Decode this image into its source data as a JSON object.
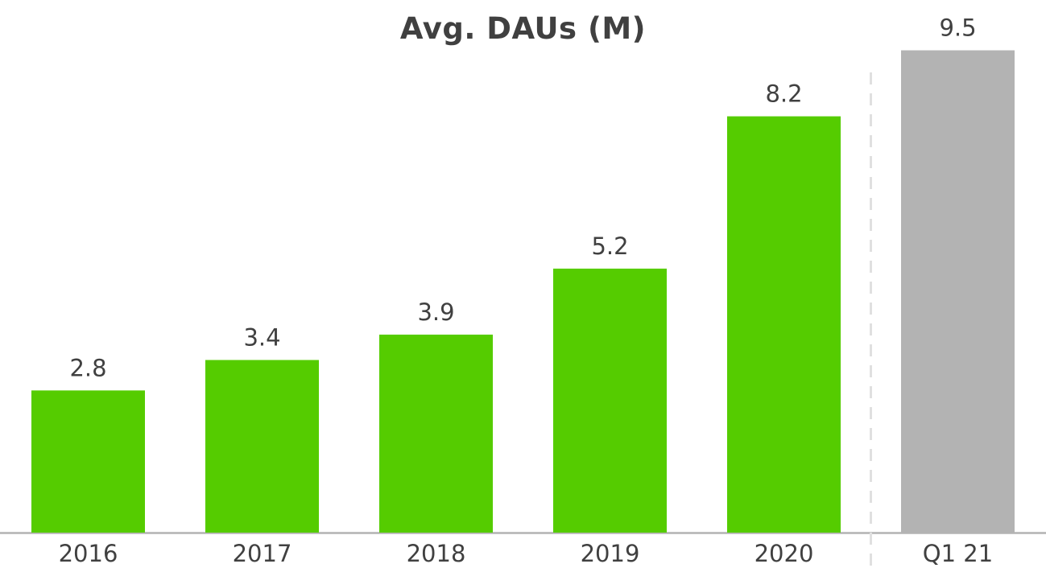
{
  "chart_data": {
    "type": "bar",
    "title": "Avg. DAUs (M)",
    "categories": [
      "2016",
      "2017",
      "2018",
      "2019",
      "2020",
      "Q1 21"
    ],
    "values": [
      2.8,
      3.4,
      3.9,
      5.2,
      8.2,
      9.5
    ],
    "value_labels": [
      "2.8",
      "3.4",
      "3.9",
      "5.2",
      "8.2",
      "9.5"
    ],
    "ylim": [
      0,
      10
    ],
    "grid": false,
    "colors": {
      "annual": "#55cc00",
      "quarterly": "#b3b3b3",
      "divider": "#e0e0e0",
      "axis": "#b3b3b3",
      "text": "#404040"
    }
  }
}
